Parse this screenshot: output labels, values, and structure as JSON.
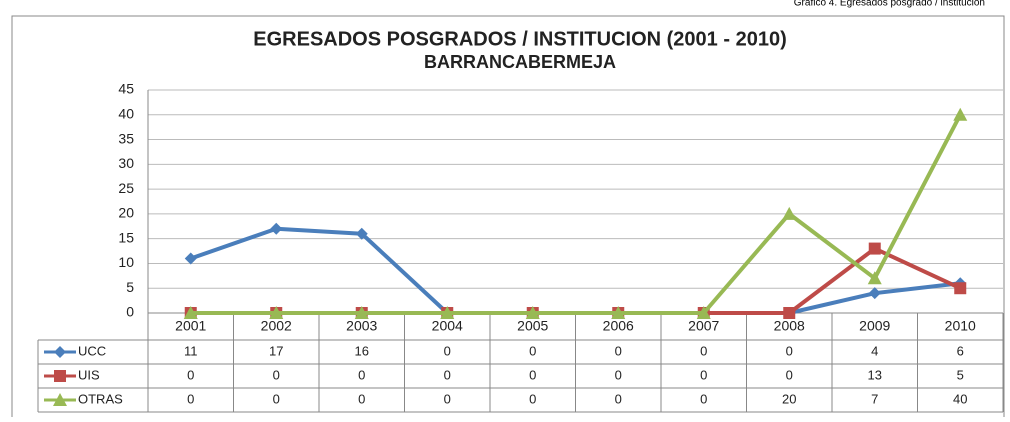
{
  "caption": "Grafico 4. Egresados posgrado / institucion",
  "chart_data": {
    "type": "line",
    "title": "EGRESADOS POSGRADOS / INSTITUCION (2001 - 2010)",
    "subtitle": "BARRANCABERMEJA",
    "categories": [
      "2001",
      "2002",
      "2003",
      "2004",
      "2005",
      "2006",
      "2007",
      "2008",
      "2009",
      "2010"
    ],
    "series": [
      {
        "name": "UCC",
        "color": "#4a7ebb",
        "marker": "diamond",
        "values": [
          11,
          17,
          16,
          0,
          0,
          0,
          0,
          0,
          4,
          6
        ]
      },
      {
        "name": "UIS",
        "color": "#be4b48",
        "marker": "square",
        "values": [
          0,
          0,
          0,
          0,
          0,
          0,
          0,
          0,
          13,
          5
        ]
      },
      {
        "name": "OTRAS",
        "color": "#98b954",
        "marker": "triangle",
        "values": [
          0,
          0,
          0,
          0,
          0,
          0,
          0,
          20,
          7,
          40
        ]
      }
    ],
    "ylim": [
      0,
      45
    ],
    "yticks": [
      0,
      5,
      10,
      15,
      20,
      25,
      30,
      35,
      40,
      45
    ],
    "grid": true,
    "data_table": true
  }
}
